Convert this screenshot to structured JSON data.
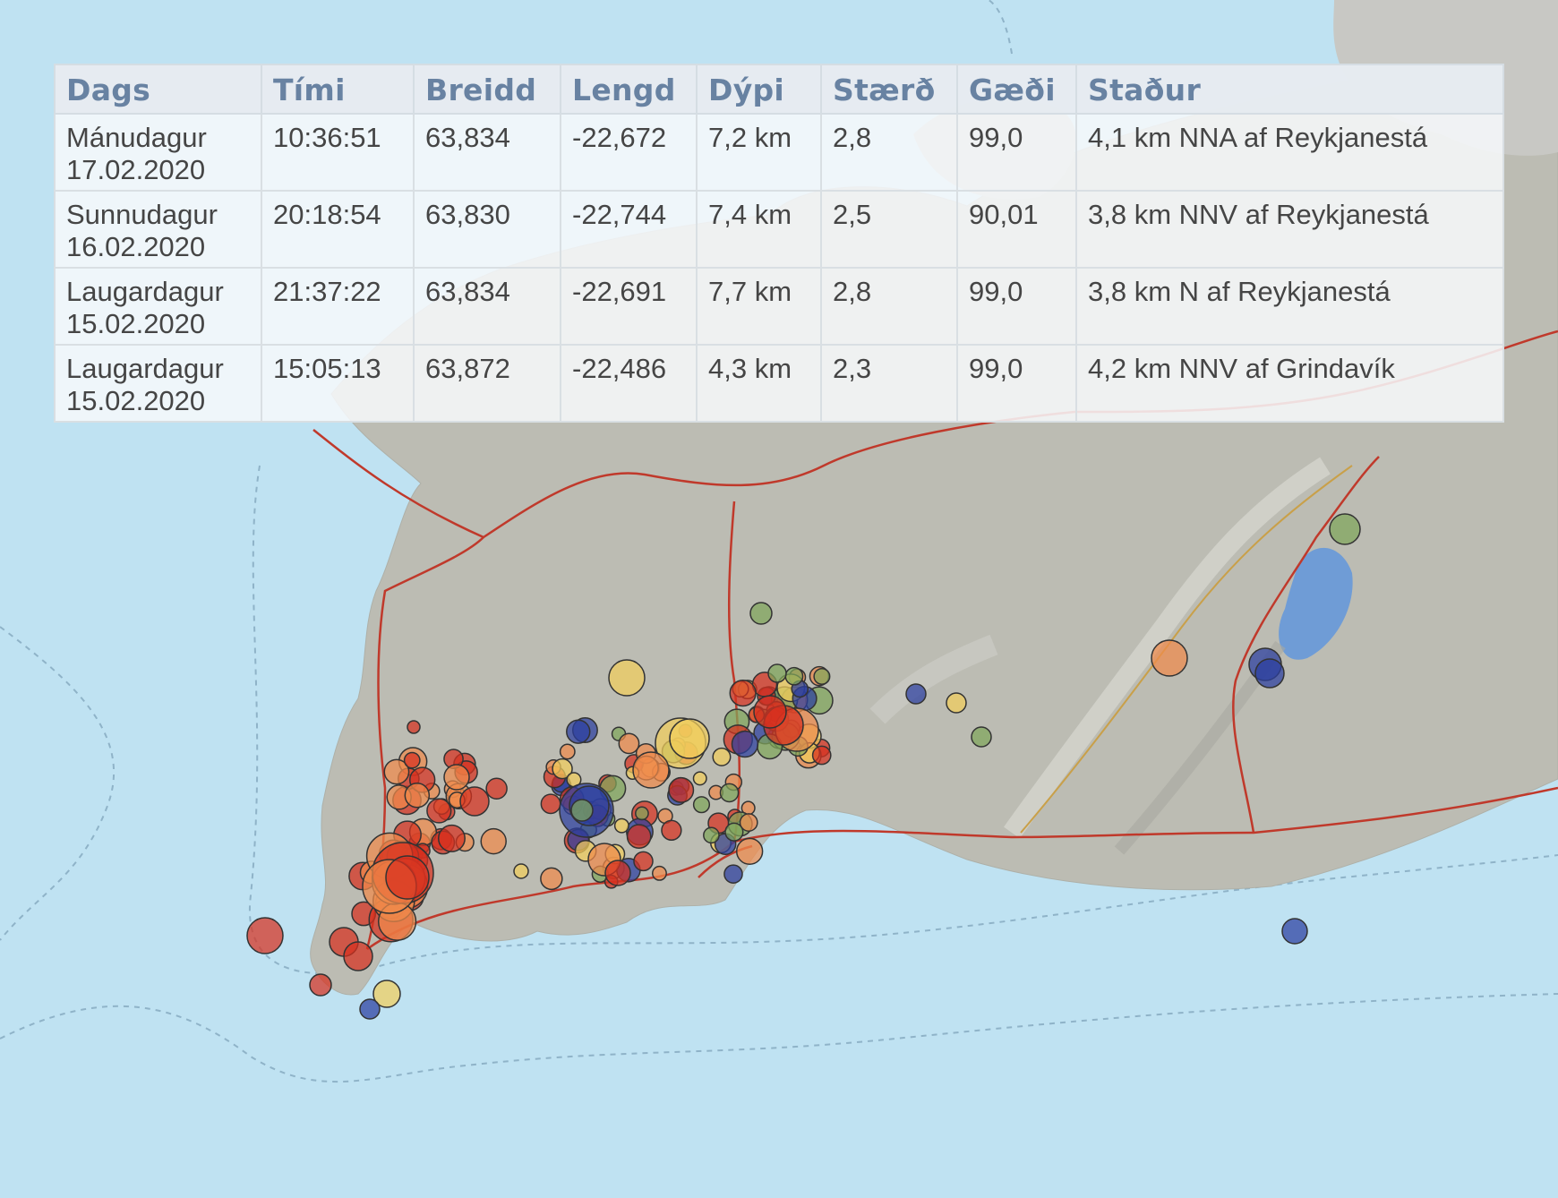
{
  "table": {
    "headers": [
      "Dags",
      "Tími",
      "Breidd",
      "Lengd",
      "Dýpi",
      "Stærð",
      "Gæði",
      "Staður"
    ],
    "rows": [
      {
        "day": "Mánudagur",
        "date": "17.02.2020",
        "time": "10:36:51",
        "lat": "63,834",
        "lon": "-22,672",
        "depth": "7,2 km",
        "mag": "2,8",
        "quality": "99,0",
        "place": "4,1 km NNA af Reykjanestá"
      },
      {
        "day": "Sunnudagur",
        "date": "16.02.2020",
        "time": "20:18:54",
        "lat": "63,830",
        "lon": "-22,744",
        "depth": "7,4 km",
        "mag": "2,5",
        "quality": "90,01",
        "place": "3,8 km NNV af Reykjanestá"
      },
      {
        "day": "Laugardagur",
        "date": "15.02.2020",
        "time": "21:37:22",
        "lat": "63,834",
        "lon": "-22,691",
        "depth": "7,7 km",
        "mag": "2,8",
        "quality": "99,0",
        "place": "3,8 km N af Reykjanestá"
      },
      {
        "day": "Laugardagur",
        "date": "15.02.2020",
        "time": "15:05:13",
        "lat": "63,872",
        "lon": "-22,486",
        "depth": "4,3 km",
        "mag": "2,3",
        "quality": "99,0",
        "place": "4,2 km NNV af Grindavík"
      }
    ]
  },
  "colors": {
    "sea": "#bfe2f2",
    "land": "#bcbcb3",
    "road": "#c0392b",
    "quake_red": "#d7301f",
    "quake_orange": "#f08a4b",
    "quake_yellow": "#f2cf5b",
    "quake_green": "#7fa65a",
    "quake_blue": "#2b3fa0"
  }
}
